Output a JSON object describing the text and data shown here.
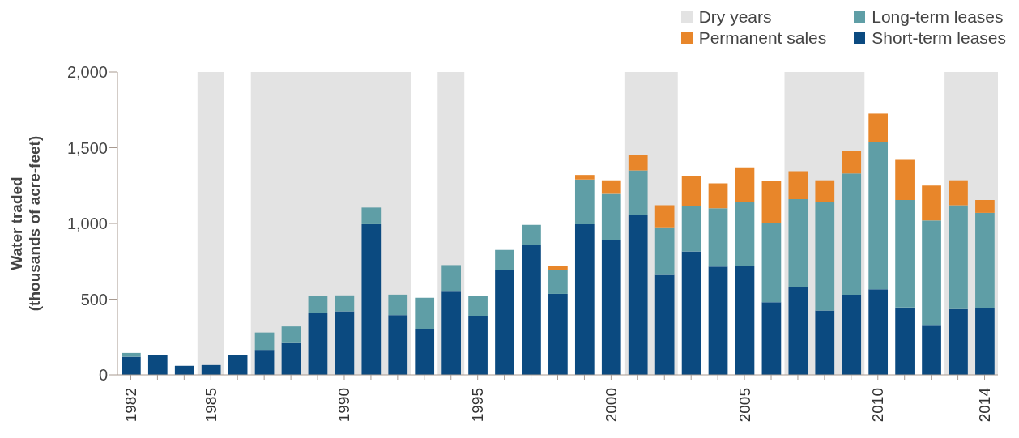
{
  "chart_data": {
    "type": "bar",
    "stacked": true,
    "ylabel": "Water traded\n(thousands of acre-feet)",
    "x": [
      1982,
      1983,
      1984,
      1985,
      1986,
      1987,
      1988,
      1989,
      1990,
      1991,
      1992,
      1993,
      1994,
      1995,
      1996,
      1997,
      1998,
      1999,
      2000,
      2001,
      2002,
      2003,
      2004,
      2005,
      2006,
      2007,
      2008,
      2009,
      2010,
      2011,
      2012,
      2013,
      2014
    ],
    "xlim": [
      1981.5,
      2014.5
    ],
    "xticks": [
      {
        "value": 1982,
        "label": "1982"
      },
      {
        "value": 1983,
        "label": null
      },
      {
        "value": 1984,
        "label": null
      },
      {
        "value": 1985,
        "label": "1985"
      },
      {
        "value": 1986,
        "label": null
      },
      {
        "value": 1987,
        "label": null
      },
      {
        "value": 1988,
        "label": null
      },
      {
        "value": 1989,
        "label": null
      },
      {
        "value": 1990,
        "label": "1990"
      },
      {
        "value": 1991,
        "label": null
      },
      {
        "value": 1992,
        "label": null
      },
      {
        "value": 1993,
        "label": null
      },
      {
        "value": 1994,
        "label": null
      },
      {
        "value": 1995,
        "label": "1995"
      },
      {
        "value": 1996,
        "label": null
      },
      {
        "value": 1997,
        "label": null
      },
      {
        "value": 1998,
        "label": null
      },
      {
        "value": 1999,
        "label": null
      },
      {
        "value": 2000,
        "label": "2000"
      },
      {
        "value": 2001,
        "label": null
      },
      {
        "value": 2002,
        "label": null
      },
      {
        "value": 2003,
        "label": null
      },
      {
        "value": 2004,
        "label": null
      },
      {
        "value": 2005,
        "label": "2005"
      },
      {
        "value": 2006,
        "label": null
      },
      {
        "value": 2007,
        "label": null
      },
      {
        "value": 2008,
        "label": null
      },
      {
        "value": 2009,
        "label": null
      },
      {
        "value": 2010,
        "label": "2010"
      },
      {
        "value": 2011,
        "label": null
      },
      {
        "value": 2012,
        "label": null
      },
      {
        "value": 2013,
        "label": null
      },
      {
        "value": 2014,
        "label": "2014"
      }
    ],
    "ylim": [
      0,
      2000
    ],
    "yticks": [
      0,
      500,
      {
        "value": 1000,
        "label": "1,000"
      },
      {
        "value": 1500,
        "label": "1,500"
      },
      {
        "value": 2000,
        "label": "2,000"
      }
    ],
    "series": [
      {
        "name": "Short-term leases",
        "color": "#0b4a80",
        "values": [
          120,
          130,
          60,
          65,
          130,
          165,
          210,
          410,
          420,
          995,
          395,
          305,
          550,
          390,
          695,
          860,
          535,
          995,
          890,
          1055,
          660,
          815,
          715,
          720,
          480,
          580,
          425,
          530,
          565,
          445,
          325,
          435,
          440
        ]
      },
      {
        "name": "Long-term leases",
        "color": "#5f9ea6",
        "values": [
          25,
          0,
          0,
          0,
          0,
          115,
          110,
          110,
          105,
          110,
          135,
          205,
          175,
          130,
          130,
          130,
          155,
          295,
          305,
          295,
          315,
          300,
          385,
          420,
          525,
          580,
          715,
          800,
          970,
          710,
          695,
          685,
          630
        ]
      },
      {
        "name": "Permanent sales",
        "color": "#e8862a",
        "values": [
          0,
          0,
          0,
          0,
          0,
          0,
          0,
          0,
          0,
          0,
          0,
          0,
          0,
          0,
          0,
          0,
          30,
          30,
          90,
          100,
          145,
          195,
          165,
          230,
          275,
          185,
          145,
          150,
          190,
          265,
          230,
          165,
          85
        ]
      }
    ],
    "bands": [
      {
        "axis": "x",
        "from": 1984.5,
        "to": 1985.5,
        "label": "Dry years",
        "color": "#e3e3e3"
      },
      {
        "axis": "x",
        "from": 1986.5,
        "to": 1992.5,
        "color": "#e3e3e3"
      },
      {
        "axis": "x",
        "from": 1993.5,
        "to": 1994.5,
        "color": "#e3e3e3"
      },
      {
        "axis": "x",
        "from": 2000.5,
        "to": 2002.5,
        "color": "#e3e3e3"
      },
      {
        "axis": "x",
        "from": 2006.5,
        "to": 2009.5,
        "color": "#e3e3e3"
      },
      {
        "axis": "x",
        "from": 2012.5,
        "to": 2014.5,
        "color": "#e3e3e3"
      }
    ],
    "legend": "top right"
  }
}
